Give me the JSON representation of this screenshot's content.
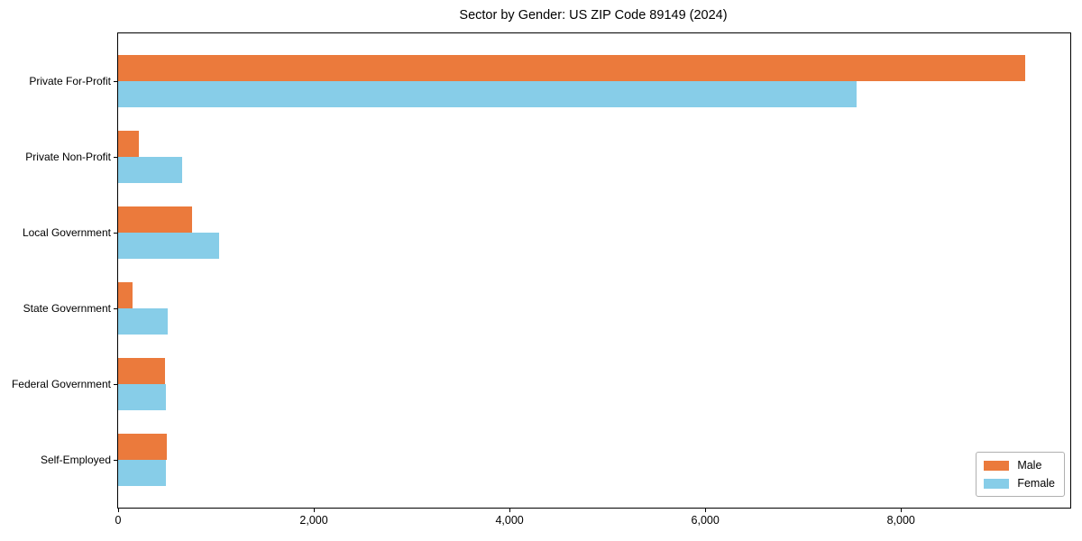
{
  "chart_data": {
    "type": "bar",
    "orientation": "horizontal",
    "title": "Sector by Gender: US ZIP Code 89149 (2024)",
    "categories": [
      "Private For-Profit",
      "Private Non-Profit",
      "Local Government",
      "State Government",
      "Federal Government",
      "Self-Employed"
    ],
    "series": [
      {
        "name": "Male",
        "color": "#eb7a3c",
        "values": [
          9270,
          210,
          755,
          150,
          475,
          500
        ]
      },
      {
        "name": "Female",
        "color": "#87cde8",
        "values": [
          7550,
          650,
          1030,
          510,
          485,
          485
        ]
      }
    ],
    "xlabel": "",
    "ylabel": "",
    "xlim": [
      0,
      9730
    ],
    "xticks": [
      0,
      2000,
      4000,
      6000,
      8000
    ],
    "xtick_labels": [
      "0",
      "2,000",
      "4,000",
      "6,000",
      "8,000"
    ],
    "grid": false,
    "legend": {
      "position": "lower right",
      "labels": [
        "Male",
        "Female"
      ]
    }
  }
}
